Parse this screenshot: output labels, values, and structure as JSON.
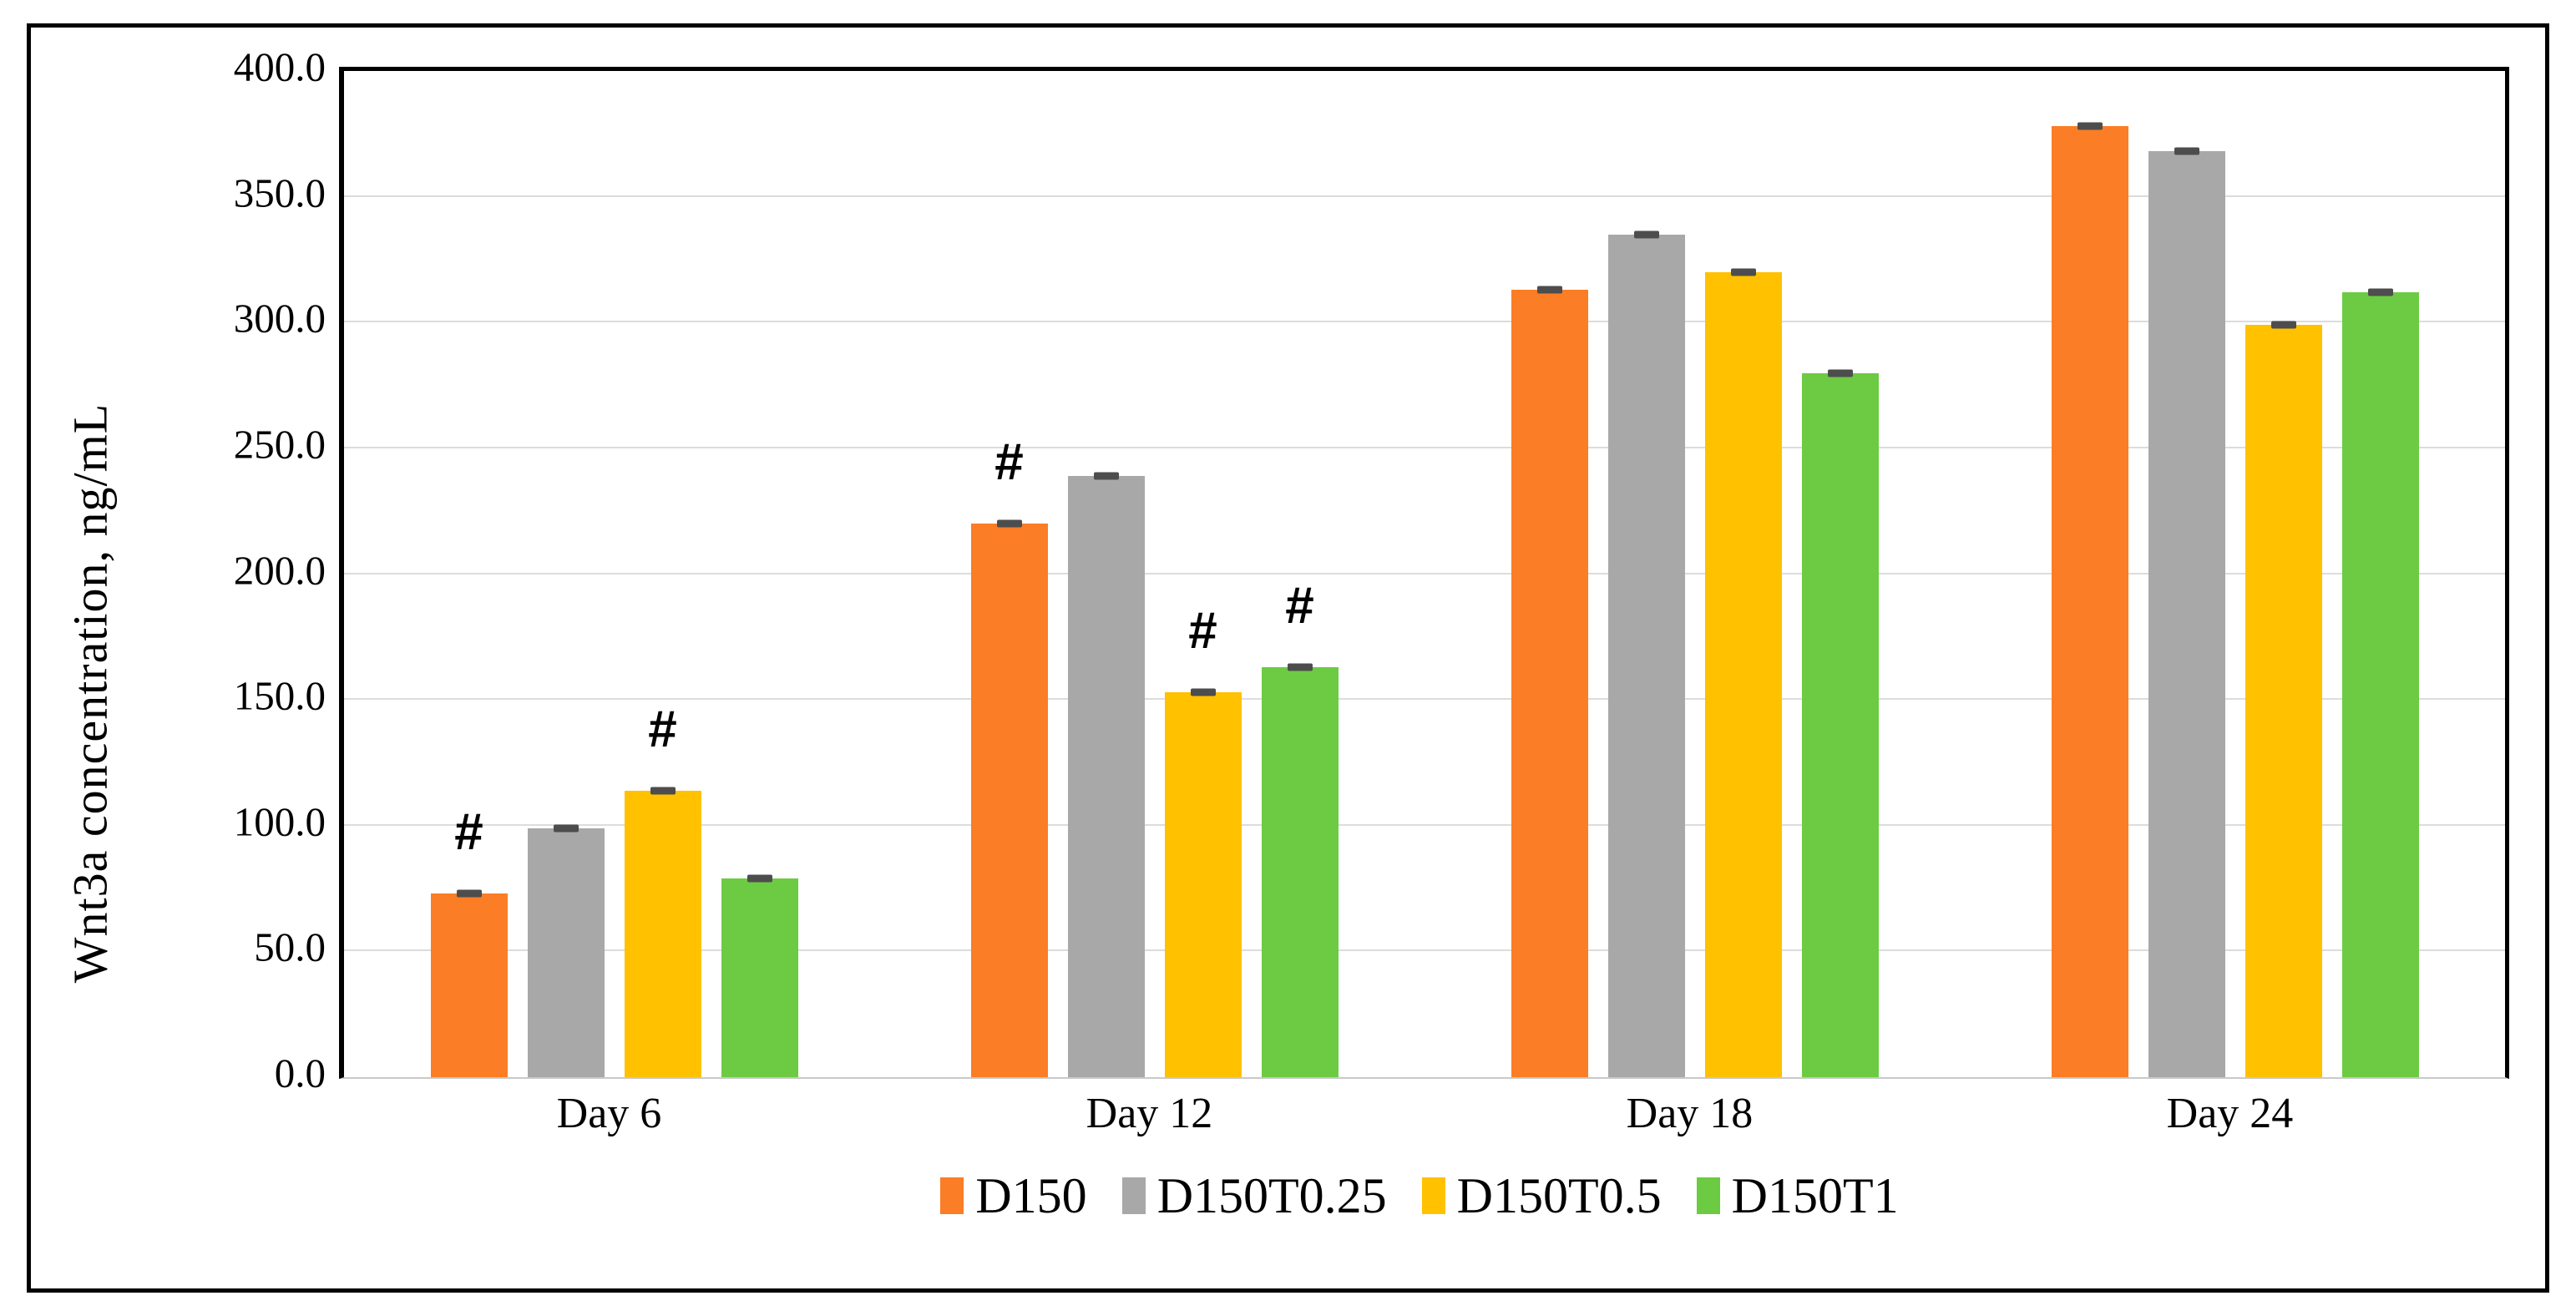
{
  "figure": {
    "background": "#FFFFFF",
    "border_color": "#000000"
  },
  "chart_data": {
    "type": "bar",
    "title": "",
    "xlabel": "",
    "ylabel": "Wnt3a concentration, ng/mL",
    "ylim": [
      0,
      400
    ],
    "yticks": [
      "0.0",
      "50.0",
      "100.0",
      "150.0",
      "200.0",
      "250.0",
      "300.0",
      "350.0",
      "400.0"
    ],
    "grid": true,
    "gridline_color": "#DCDCDC",
    "error_cap_color": "#4D4D4D",
    "legend_position": "bottom",
    "categories": [
      "Day 6",
      "Day 12",
      "Day 18",
      "Day 24"
    ],
    "series": [
      {
        "name": "D150",
        "color": "#FB7D25",
        "values": [
          73,
          220,
          313,
          378
        ],
        "errors": [
          2,
          2,
          2,
          2
        ]
      },
      {
        "name": "D150T0.25",
        "color": "#A8A8A8",
        "values": [
          99,
          239,
          335,
          368
        ],
        "errors": [
          2,
          2,
          2,
          2
        ]
      },
      {
        "name": "D150T0.5",
        "color": "#FFC100",
        "values": [
          114,
          153,
          320,
          299
        ],
        "errors": [
          2,
          2,
          3,
          3
        ]
      },
      {
        "name": "D150T1",
        "color": "#6CCB43",
        "values": [
          79,
          163,
          280,
          312
        ],
        "errors": [
          2,
          2,
          2,
          3
        ]
      }
    ],
    "annotations": [
      {
        "category": "Day 6",
        "series": "D150",
        "symbol": "#"
      },
      {
        "category": "Day 6",
        "series": "D150T0.5",
        "symbol": "#"
      },
      {
        "category": "Day 12",
        "series": "D150",
        "symbol": "#"
      },
      {
        "category": "Day 12",
        "series": "D150T0.5",
        "symbol": "#"
      },
      {
        "category": "Day 12",
        "series": "D150T1",
        "symbol": "#"
      }
    ]
  }
}
